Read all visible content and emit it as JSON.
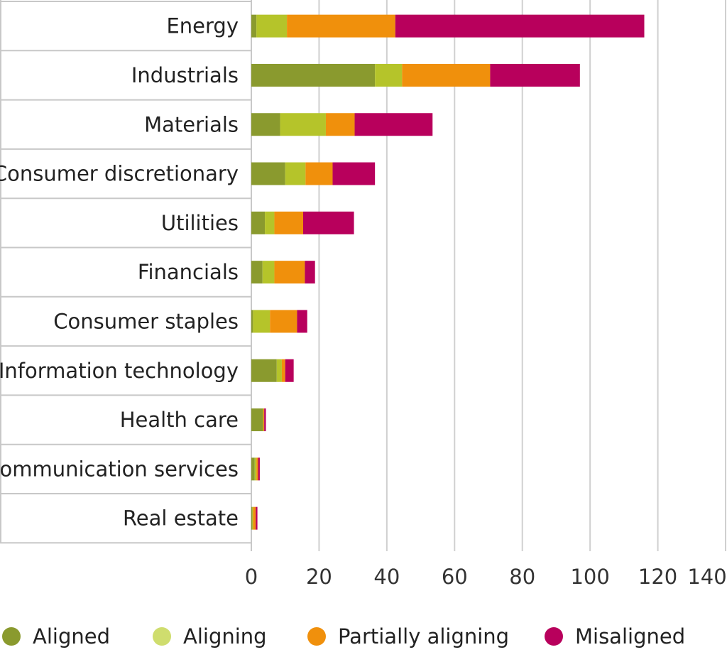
{
  "chart_data": {
    "type": "bar",
    "orientation": "horizontal",
    "stacked": true,
    "categories": [
      "Energy",
      "Industrials",
      "Materials",
      "Consumer discretionary",
      "Utilities",
      "Financials",
      "Consumer staples",
      "Information technology",
      "Health care",
      "Communication services",
      "Real estate"
    ],
    "series": [
      {
        "name": "Aligned",
        "color": "#8a9a2e",
        "values": [
          1.5,
          36.5,
          8.5,
          10,
          4,
          3.3,
          0.5,
          7.5,
          3.5,
          1,
          0.3
        ]
      },
      {
        "name": "Aligning",
        "color": "#b5c42a",
        "values": [
          9,
          8,
          13.5,
          6,
          2.8,
          3.5,
          5,
          1.5,
          0,
          0.5,
          0.2
        ]
      },
      {
        "name": "Partially aligning",
        "color": "#f0900c",
        "values": [
          32,
          26,
          8.5,
          8,
          8.5,
          9,
          8,
          1,
          0.3,
          0.5,
          0.8
        ]
      },
      {
        "name": "Misaligned",
        "color": "#b8005c",
        "values": [
          73.5,
          26.5,
          23,
          12.5,
          15,
          3,
          3,
          2.5,
          0.5,
          0.5,
          0.5
        ]
      }
    ],
    "xlim": [
      0,
      140
    ],
    "xticks": [
      "0",
      "20",
      "40",
      "60",
      "80",
      "100",
      "120",
      "140"
    ],
    "grid": "vertical",
    "legend": {
      "position": "bottom",
      "items": [
        {
          "label": "Aligned",
          "color": "#8a9a2e"
        },
        {
          "label": "Aligning",
          "color": "#cfdd6e"
        },
        {
          "label": "Partially aligning",
          "color": "#f0900c"
        },
        {
          "label": "Misaligned",
          "color": "#b8005c"
        }
      ]
    },
    "title": "",
    "xlabel": "",
    "ylabel": ""
  }
}
